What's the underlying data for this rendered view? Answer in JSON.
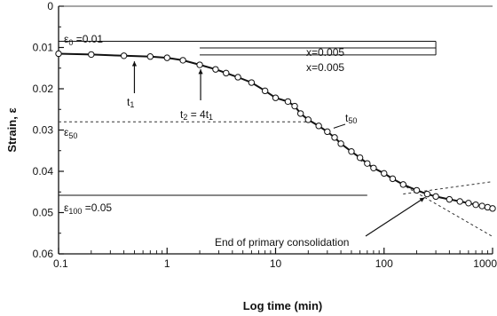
{
  "chart_data": {
    "type": "line",
    "xlabel": "Log time (min)",
    "ylabel": "Strain, ε",
    "x_scale": "log",
    "xlim": [
      0.1,
      1000
    ],
    "ylim": [
      0,
      0.06
    ],
    "y_inverted": true,
    "grid": false,
    "x_ticks": [
      0.1,
      1,
      10,
      100,
      1000
    ],
    "x_tick_labels": [
      "0.1",
      "1",
      "10",
      "100",
      "1000"
    ],
    "y_ticks": [
      0,
      0.01,
      0.02,
      0.03,
      0.04,
      0.05,
      0.06
    ],
    "y_tick_labels": [
      "0",
      "0.01",
      "0.02",
      "0.03",
      "0.04",
      "0.05",
      "0.06"
    ],
    "series": [
      {
        "x": [
          0.1,
          0.2,
          0.4,
          0.7,
          1,
          1.4,
          2,
          2.8,
          3.5,
          4.5,
          6,
          8,
          10,
          13,
          15,
          17,
          20,
          25,
          30,
          35,
          40,
          50,
          60,
          70,
          80,
          100,
          120,
          150,
          200,
          250,
          300,
          400,
          500,
          600,
          700,
          800,
          900,
          1000
        ],
        "y": [
          0.0115,
          0.0117,
          0.012,
          0.0122,
          0.0125,
          0.0131,
          0.0142,
          0.0153,
          0.0162,
          0.0172,
          0.0185,
          0.0205,
          0.0222,
          0.0231,
          0.0242,
          0.026,
          0.0275,
          0.029,
          0.0304,
          0.0318,
          0.0333,
          0.0352,
          0.0367,
          0.0381,
          0.0392,
          0.0405,
          0.0418,
          0.0432,
          0.0446,
          0.0455,
          0.0461,
          0.0468,
          0.0473,
          0.0477,
          0.0481,
          0.0484,
          0.0487,
          0.049
        ],
        "markers": true
      }
    ],
    "annotations": [
      {
        "text": "ε",
        "sub": "0",
        "rest": " =0.01"
      },
      {
        "text": "x=0.005"
      },
      {
        "text": "x=0.005"
      },
      {
        "text": "t",
        "sub": "1",
        "rest": ""
      },
      {
        "text": "t",
        "sub": "2",
        "rest": " = 4t",
        "sub2": "1"
      },
      {
        "text": "t",
        "sub": "50",
        "rest": ""
      },
      {
        "text": "ε",
        "sub": "50",
        "rest": ""
      },
      {
        "text": "ε",
        "sub": "100",
        "rest": " =0.05"
      },
      {
        "text": "End of primary consolidation"
      }
    ],
    "reference_lines": {
      "eps0": 0.0085,
      "x_level1": 0.0101,
      "x_level2": 0.0118,
      "eps50": 0.028,
      "eps100": 0.0458,
      "eps100_x_end": 70,
      "eps50_x_end": 20,
      "eps0_x_end": 300,
      "x_marker_x": 300,
      "x_lines_x_start": 2,
      "t1": 0.5,
      "t2": 2,
      "t50": 33,
      "t_end": 260,
      "tangent1": [
        [
          60,
          0.0373
        ],
        [
          1000,
          0.0558
        ]
      ],
      "tangent2": [
        [
          150,
          0.0455
        ],
        [
          1000,
          0.0425
        ]
      ]
    }
  }
}
